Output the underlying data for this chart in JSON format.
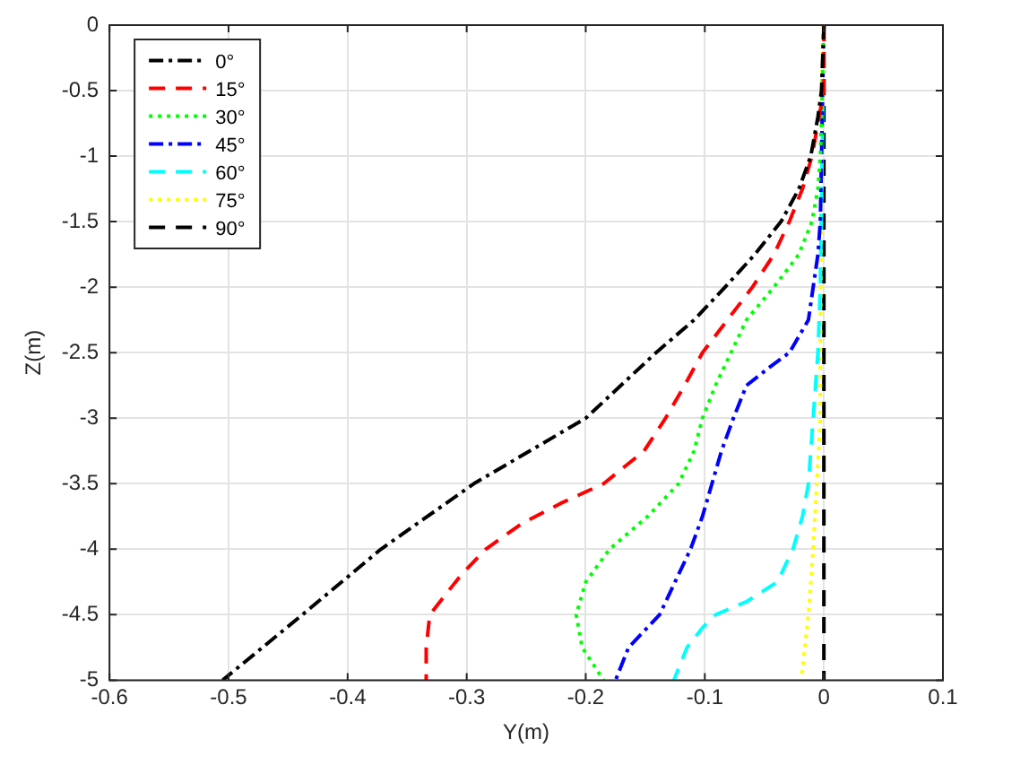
{
  "chart_data": {
    "type": "line",
    "xlabel": "Y(m)",
    "ylabel": "Z(m)",
    "xlim": [
      -0.6,
      0.1
    ],
    "xticks": [
      -0.6,
      -0.5,
      -0.4,
      -0.3,
      -0.2,
      -0.1,
      0,
      0.1
    ],
    "ylim": [
      -5,
      0
    ],
    "yticks": [
      -5,
      -4.5,
      -4,
      -3.5,
      -3,
      -2.5,
      -2,
      -1.5,
      -1,
      -0.5,
      0
    ],
    "grid": true,
    "legend": "top left",
    "marker": "none",
    "series": [
      {
        "name": "0°",
        "color": "#000000",
        "line_style": "dashdot",
        "x": [
          0,
          -0.002,
          -0.005,
          -0.011,
          -0.021,
          -0.036,
          -0.058,
          -0.083,
          -0.109,
          -0.141,
          -0.2,
          -0.294,
          -0.372,
          -0.438,
          -0.505
        ],
        "values": [
          0,
          -0.5,
          -0.7,
          -1,
          -1.25,
          -1.5,
          -1.75,
          -2,
          -2.25,
          -2.5,
          -3,
          -3.5,
          -4,
          -4.5,
          -5
        ]
      },
      {
        "name": "15°",
        "color": "#ff0000",
        "line_style": "dashed",
        "x": [
          0,
          0,
          -0.005,
          -0.01,
          -0.018,
          -0.029,
          -0.042,
          -0.06,
          -0.081,
          -0.102,
          -0.117,
          -0.133,
          -0.151,
          -0.185,
          -0.221,
          -0.253,
          -0.284,
          -0.305,
          -0.331,
          -0.334,
          -0.334
        ],
        "values": [
          0,
          -0.5,
          -0.75,
          -1,
          -1.25,
          -1.5,
          -1.75,
          -2,
          -2.25,
          -2.5,
          -2.75,
          -3,
          -3.25,
          -3.5,
          -3.65,
          -3.8,
          -4,
          -4.2,
          -4.5,
          -4.75,
          -5
        ]
      },
      {
        "name": "30°",
        "color": "#00ff00",
        "line_style": "dotted",
        "x": [
          0,
          -0.002,
          -0.003,
          -0.005,
          -0.01,
          -0.021,
          -0.042,
          -0.065,
          -0.078,
          -0.091,
          -0.102,
          -0.109,
          -0.122,
          -0.148,
          -0.18,
          -0.2,
          -0.208,
          -0.203,
          -0.185
        ],
        "values": [
          0,
          -0.75,
          -1,
          -1.25,
          -1.5,
          -1.75,
          -2,
          -2.25,
          -2.5,
          -2.75,
          -3,
          -3.25,
          -3.5,
          -3.75,
          -4,
          -4.25,
          -4.5,
          -4.75,
          -5
        ]
      },
      {
        "name": "45°",
        "color": "#0000ff",
        "line_style": "dashdot",
        "x": [
          0,
          -0.003,
          -0.005,
          -0.009,
          -0.013,
          -0.029,
          -0.044,
          -0.065,
          -0.076,
          -0.086,
          -0.094,
          -0.102,
          -0.112,
          -0.125,
          -0.138,
          -0.164,
          -0.175
        ],
        "values": [
          0,
          -1.5,
          -1.75,
          -2,
          -2.25,
          -2.5,
          -2.6,
          -2.75,
          -3,
          -3.25,
          -3.5,
          -3.75,
          -4,
          -4.25,
          -4.5,
          -4.75,
          -5
        ]
      },
      {
        "name": "60°",
        "color": "#00ffff",
        "line_style": "dashed",
        "x": [
          0,
          -0.003,
          -0.005,
          -0.009,
          -0.013,
          -0.018,
          -0.026,
          -0.039,
          -0.065,
          -0.091,
          -0.102,
          -0.115,
          -0.126
        ],
        "values": [
          0,
          -2,
          -2.5,
          -3,
          -3.5,
          -3.75,
          -4,
          -4.25,
          -4.4,
          -4.5,
          -4.6,
          -4.75,
          -5
        ]
      },
      {
        "name": "75°",
        "color": "#ffff00",
        "line_style": "dotted",
        "x": [
          -0.001,
          -0.003,
          -0.003,
          -0.009,
          -0.013,
          -0.019
        ],
        "values": [
          0,
          -2.5,
          -3,
          -4,
          -4.5,
          -5
        ]
      },
      {
        "name": "90°",
        "color": "#000000",
        "line_style": "dashed",
        "x": [
          0,
          0
        ],
        "values": [
          0,
          -5
        ]
      }
    ]
  }
}
